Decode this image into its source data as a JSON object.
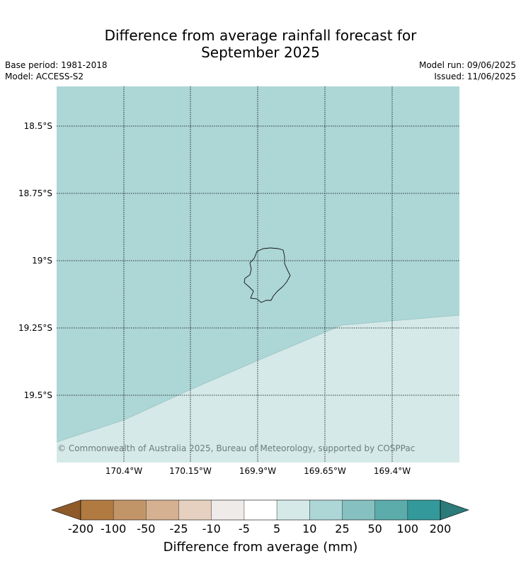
{
  "title_line1": "Difference from average rainfall forecast for",
  "title_line2": "September 2025",
  "base_period": "Base period: 1981-2018",
  "model": "Model: ACCESS-S2",
  "model_run": "Model run: 09/06/2025",
  "issued": "Issued: 11/06/2025",
  "copyright": "© Commonwealth of Australia 2025, Bureau of Meteorology, supported by COSPPac",
  "map": {
    "lat_labels": [
      "18.5°S",
      "18.75°S",
      "19°S",
      "19.25°S",
      "19.5°S"
    ],
    "lon_labels": [
      "170.4°W",
      "170.15°W",
      "169.9°W",
      "169.65°W",
      "169.4°W"
    ],
    "zone_colors": {
      "upper": "#add6d6",
      "lower": "#d4e9e8"
    }
  },
  "colorbar": {
    "title": "Difference from average (mm)",
    "tick_labels": [
      "-200",
      "-100",
      "-50",
      "-25",
      "-10",
      "-5",
      "5",
      "10",
      "25",
      "50",
      "100",
      "200"
    ],
    "colors": [
      "#8f5a2a",
      "#b07a41",
      "#c29569",
      "#d5b192",
      "#e6d0bf",
      "#efebe8",
      "#ffffff",
      "#d4e9e8",
      "#add6d6",
      "#86c0c1",
      "#5bacab",
      "#34999a",
      "#2c7a7a"
    ]
  }
}
